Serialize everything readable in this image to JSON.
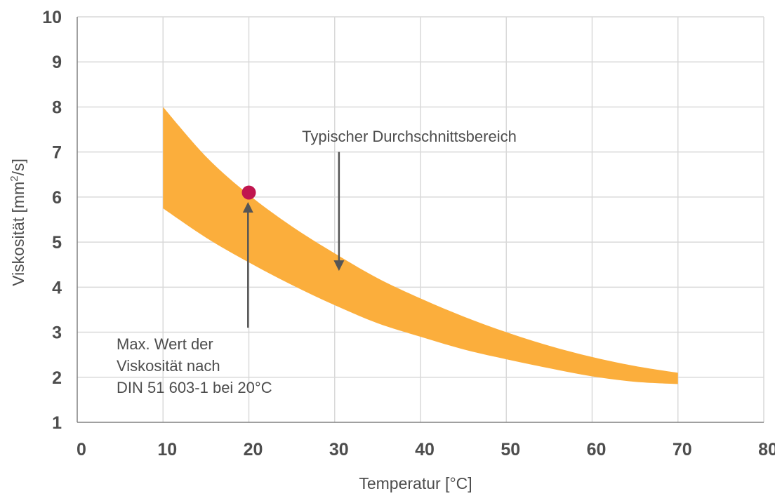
{
  "chart_data": {
    "type": "area",
    "title": "",
    "xlabel": "Temperatur [°C]",
    "ylabel": "Viskosität [mm²/s]",
    "ylabel_parts": [
      "Viskosität [mm",
      "2",
      "/s]"
    ],
    "xlim": [
      0,
      80
    ],
    "ylim": [
      1,
      10
    ],
    "x_ticks": [
      0,
      10,
      20,
      30,
      40,
      50,
      60,
      70,
      80
    ],
    "y_ticks": [
      1,
      2,
      3,
      4,
      5,
      6,
      7,
      8,
      9,
      10
    ],
    "grid": true,
    "legend": "none",
    "colors": {
      "band": "#fbae3c",
      "marker": "#c0164f",
      "grid": "#d9d9d9",
      "axis": "#808080",
      "arrow": "#555555",
      "text": "#4d4d4d"
    },
    "series": [
      {
        "x": [
          10,
          15,
          20,
          25,
          30,
          35,
          40,
          45,
          50,
          55,
          60,
          65,
          70
        ],
        "upper": [
          8.0,
          6.9,
          6.05,
          5.35,
          4.75,
          4.2,
          3.75,
          3.35,
          3.0,
          2.7,
          2.45,
          2.25,
          2.1
        ],
        "lower": [
          5.75,
          5.1,
          4.55,
          4.05,
          3.6,
          3.2,
          2.9,
          2.62,
          2.4,
          2.2,
          2.02,
          1.9,
          1.85
        ]
      }
    ],
    "markers": [
      {
        "x": 20,
        "y": 6.1
      }
    ],
    "annotations": [
      {
        "lines": [
          "Typischer Durchschnittsbereich"
        ],
        "arrow_x": 30.5,
        "arrow_from_y": 7.0,
        "arrow_to_y": 4.4
      },
      {
        "lines": [
          "Max. Wert der",
          "Viskosität nach",
          "DIN 51 603-1 bei 20°C"
        ],
        "arrow_x": 19.9,
        "arrow_from_y": 3.1,
        "arrow_to_y": 5.85
      }
    ]
  }
}
